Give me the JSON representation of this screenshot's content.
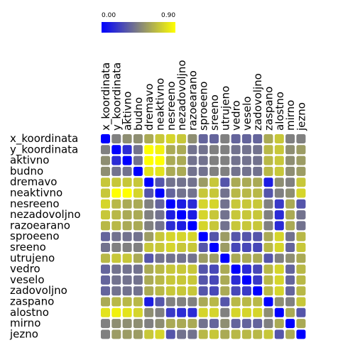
{
  "chart_data": {
    "type": "heatmap",
    "labels": [
      "x_koordinata",
      "y_koordinata",
      "aktivno",
      "budno",
      "dremavo",
      "neaktivno",
      "nesreeno",
      "nezadovoljno",
      "razoearano",
      "sproeeno",
      "sreeno",
      "utrujeno",
      "vedro",
      "veselo",
      "zadovoljno",
      "zaspano",
      "alostno",
      "mirno",
      "jezno"
    ],
    "legend": {
      "min_label": "0.00",
      "max_label": "0.90",
      "min_value": 0.0,
      "max_value": 0.9,
      "colors": [
        "#0000ff",
        "#808080",
        "#ffff00"
      ]
    },
    "values": [
      [
        0.0,
        0.45,
        0.5,
        0.5,
        0.6,
        0.7,
        0.75,
        0.7,
        0.5,
        0.35,
        0.35,
        0.45,
        0.35,
        0.35,
        0.35,
        0.6,
        0.7,
        0.45,
        0.45
      ],
      [
        0.45,
        0.0,
        0.15,
        0.4,
        0.9,
        0.85,
        0.6,
        0.6,
        0.4,
        0.4,
        0.45,
        0.45,
        0.4,
        0.4,
        0.4,
        0.65,
        0.7,
        0.5,
        0.55
      ],
      [
        0.5,
        0.15,
        0.0,
        0.4,
        0.9,
        0.9,
        0.6,
        0.6,
        0.4,
        0.4,
        0.45,
        0.45,
        0.4,
        0.4,
        0.4,
        0.65,
        0.7,
        0.5,
        0.55
      ],
      [
        0.5,
        0.4,
        0.4,
        0.0,
        0.8,
        0.8,
        0.6,
        0.6,
        0.4,
        0.4,
        0.45,
        0.45,
        0.4,
        0.4,
        0.4,
        0.65,
        0.7,
        0.5,
        0.55
      ],
      [
        0.7,
        0.7,
        0.7,
        0.7,
        0.0,
        0.3,
        0.4,
        0.4,
        0.4,
        0.55,
        0.7,
        0.3,
        0.6,
        0.6,
        0.6,
        0.1,
        0.5,
        0.45,
        0.7
      ],
      [
        0.7,
        0.9,
        0.9,
        0.75,
        0.3,
        0.0,
        0.35,
        0.4,
        0.4,
        0.7,
        0.7,
        0.4,
        0.65,
        0.65,
        0.65,
        0.3,
        0.45,
        0.5,
        0.75
      ],
      [
        0.75,
        0.65,
        0.6,
        0.6,
        0.45,
        0.35,
        0.0,
        0.1,
        0.15,
        0.75,
        0.75,
        0.4,
        0.7,
        0.7,
        0.7,
        0.45,
        0.2,
        0.6,
        0.3
      ],
      [
        0.7,
        0.65,
        0.6,
        0.6,
        0.45,
        0.4,
        0.1,
        0.0,
        0.1,
        0.75,
        0.7,
        0.4,
        0.7,
        0.7,
        0.7,
        0.45,
        0.15,
        0.6,
        0.4
      ],
      [
        0.65,
        0.65,
        0.6,
        0.6,
        0.45,
        0.4,
        0.15,
        0.1,
        0.0,
        0.75,
        0.7,
        0.4,
        0.7,
        0.7,
        0.7,
        0.45,
        0.15,
        0.6,
        0.4
      ],
      [
        0.35,
        0.4,
        0.4,
        0.4,
        0.55,
        0.7,
        0.75,
        0.75,
        0.75,
        0.0,
        0.3,
        0.55,
        0.3,
        0.3,
        0.3,
        0.6,
        0.75,
        0.4,
        0.65
      ],
      [
        0.4,
        0.45,
        0.45,
        0.45,
        0.7,
        0.7,
        0.75,
        0.7,
        0.7,
        0.3,
        0.0,
        0.55,
        0.25,
        0.25,
        0.25,
        0.65,
        0.75,
        0.35,
        0.7
      ],
      [
        0.65,
        0.7,
        0.7,
        0.6,
        0.3,
        0.4,
        0.4,
        0.4,
        0.4,
        0.55,
        0.55,
        0.0,
        0.6,
        0.6,
        0.6,
        0.3,
        0.45,
        0.5,
        0.6
      ],
      [
        0.35,
        0.4,
        0.4,
        0.4,
        0.6,
        0.65,
        0.7,
        0.7,
        0.7,
        0.3,
        0.25,
        0.6,
        0.0,
        0.15,
        0.25,
        0.65,
        0.75,
        0.35,
        0.65
      ],
      [
        0.35,
        0.4,
        0.4,
        0.4,
        0.6,
        0.65,
        0.7,
        0.7,
        0.7,
        0.3,
        0.25,
        0.6,
        0.15,
        0.0,
        0.2,
        0.65,
        0.75,
        0.35,
        0.65
      ],
      [
        0.35,
        0.4,
        0.4,
        0.4,
        0.6,
        0.65,
        0.7,
        0.7,
        0.7,
        0.3,
        0.25,
        0.6,
        0.25,
        0.2,
        0.0,
        0.65,
        0.75,
        0.35,
        0.65
      ],
      [
        0.6,
        0.65,
        0.65,
        0.65,
        0.1,
        0.3,
        0.45,
        0.45,
        0.45,
        0.6,
        0.65,
        0.3,
        0.65,
        0.65,
        0.65,
        0.0,
        0.5,
        0.45,
        0.7
      ],
      [
        0.8,
        0.85,
        0.8,
        0.75,
        0.5,
        0.45,
        0.2,
        0.15,
        0.15,
        0.75,
        0.75,
        0.45,
        0.75,
        0.75,
        0.75,
        0.5,
        0.0,
        0.6,
        0.3
      ],
      [
        0.45,
        0.5,
        0.5,
        0.5,
        0.45,
        0.5,
        0.6,
        0.6,
        0.6,
        0.4,
        0.35,
        0.5,
        0.35,
        0.35,
        0.35,
        0.45,
        0.6,
        0.0,
        0.6
      ],
      [
        0.45,
        0.55,
        0.55,
        0.55,
        0.7,
        0.75,
        0.3,
        0.4,
        0.4,
        0.65,
        0.7,
        0.6,
        0.65,
        0.65,
        0.65,
        0.7,
        0.3,
        0.6,
        0.0
      ]
    ]
  }
}
